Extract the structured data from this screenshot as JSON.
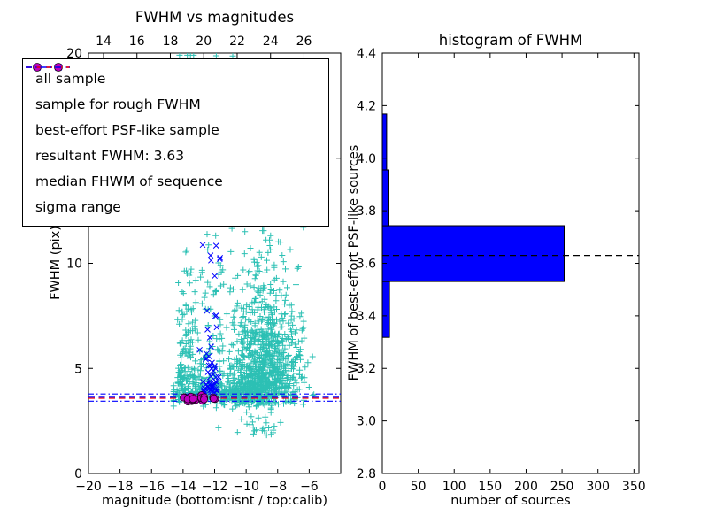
{
  "figure": {
    "background": "#ffffff"
  },
  "chart_data": [
    {
      "type": "scatter",
      "title": "FWHM vs magnitudes",
      "xlabel": "magnitude (bottom:isnt / top:calib)",
      "ylabel": "FWHM (pix)",
      "xlim": [
        -20,
        -4
      ],
      "ylim": [
        0,
        20
      ],
      "top_axis_xlim": [
        13.1,
        28.2
      ],
      "xticks": [
        -20,
        -18,
        -16,
        -14,
        -12,
        -10,
        -8,
        -6
      ],
      "top_xticks": [
        14,
        16,
        18,
        20,
        22,
        24,
        26
      ],
      "yticks": [
        0,
        5,
        10,
        15,
        20
      ],
      "grid": false,
      "legend_position": "upper left",
      "lines": {
        "resultant_fwhm": {
          "value": 3.63,
          "color": "#0000ff",
          "style": "dashed"
        },
        "median_fwhm": {
          "value": 3.58,
          "color": "#ff0000",
          "style": "dashed"
        },
        "sigma_range": {
          "low": 3.44,
          "high": 3.78,
          "color": "#0000ff",
          "style": "dashdot"
        }
      },
      "legend": {
        "items": [
          {
            "label": "all sample",
            "marker": "plus",
            "color": "#2cc0b4"
          },
          {
            "label": "sample for rough FWHM",
            "marker": "x",
            "color": "#0000ff"
          },
          {
            "label": "best-effort PSF-like sample",
            "marker": "circle",
            "color": "#bf00bf"
          },
          {
            "label": "resultant FWHM: 3.63",
            "marker": "dashed-line",
            "color": "#0000ff"
          },
          {
            "label": "median FHWM of sequence",
            "marker": "dashed-line",
            "color": "#ff0000"
          },
          {
            "label": "sigma range",
            "marker": "dashdot-line",
            "color": "#0000ff"
          }
        ]
      },
      "series": [
        {
          "name": "all sample",
          "marker": "plus",
          "color": "#2cc0b4",
          "clusters": [
            {
              "n": 150,
              "mag": {
                "dist": "uniform",
                "min": -14.35,
                "max": -13.25
              },
              "fwhm": {
                "dist": "lognorm",
                "offset": 3.3,
                "mu": 0.75,
                "sigma": 1.0,
                "min": 3.35,
                "max": 19.9
              }
            },
            {
              "n": 120,
              "mag": {
                "dist": "uniform",
                "min": -13.25,
                "max": -11.45
              },
              "fwhm": {
                "dist": "lognorm",
                "offset": 3.4,
                "mu": 0.8,
                "sigma": 0.9,
                "min": 3.45,
                "max": 19.6
              }
            },
            {
              "n": 880,
              "mag": {
                "dist": "normal",
                "mu": -8.9,
                "sigma": 1.15,
                "min": -11.7,
                "max": -5.6
              },
              "fwhm": {
                "dist": "lognorm",
                "offset": 2.7,
                "mu": 0.95,
                "sigma": 0.62,
                "min": 2.3,
                "max": 18.5
              }
            },
            {
              "n": 290,
              "mag": {
                "dist": "normal",
                "mu": -11.0,
                "sigma": 2.1,
                "min": -14.6,
                "max": -5.7
              },
              "fwhm": {
                "dist": "normal",
                "mu": 3.75,
                "sigma": 0.28,
                "min": 3.05,
                "max": 4.6
              }
            },
            {
              "n": 26,
              "mag": {
                "dist": "normal",
                "mu": -9.3,
                "sigma": 1.1,
                "min": -11.9,
                "max": -6.6
              },
              "fwhm": {
                "dist": "uniform",
                "min": 1.8,
                "max": 2.95
              }
            },
            {
              "n": 45,
              "mag": {
                "dist": "uniform",
                "min": -13.6,
                "max": -6.4
              },
              "fwhm": {
                "dist": "uniform",
                "min": 12.8,
                "max": 19.9
              }
            }
          ]
        },
        {
          "name": "sample for rough FWHM",
          "marker": "x",
          "color": "#0000ff",
          "clusters": [
            {
              "n": 46,
              "mag": {
                "dist": "normal",
                "mu": -12.2,
                "sigma": 0.33,
                "min": -12.95,
                "max": -11.45
              },
              "fwhm": {
                "dist": "lognorm",
                "offset": 3.55,
                "mu": 0.45,
                "sigma": 0.85,
                "min": 3.6,
                "max": 13.2
              }
            },
            {
              "n": 14,
              "mag": {
                "dist": "uniform",
                "min": -12.7,
                "max": -11.8
              },
              "fwhm": {
                "dist": "normal",
                "mu": 4.1,
                "sigma": 0.18
              }
            }
          ]
        },
        {
          "name": "best-effort PSF-like sample",
          "marker": "circle",
          "color": "#bf00bf",
          "edge": "#1a001a",
          "clusters": [
            {
              "n": 24,
              "mag": {
                "dist": "uniform",
                "min": -14.15,
                "max": -11.9
              },
              "fwhm": {
                "dist": "normal",
                "mu": 3.58,
                "sigma": 0.055
              }
            }
          ]
        }
      ]
    },
    {
      "type": "bar-horizontal",
      "title": "histogram of FWHM",
      "xlabel": "number of sources",
      "ylabel": "FWHM of best-effort PSF-like sources",
      "xlim": [
        0,
        357
      ],
      "ylim": [
        2.8,
        4.4
      ],
      "xticks": [
        0,
        50,
        100,
        150,
        200,
        250,
        300,
        350
      ],
      "yticks": [
        2.8,
        3.0,
        3.2,
        3.4,
        3.6,
        3.8,
        4.0,
        4.2,
        4.4
      ],
      "grid": false,
      "bar_color": "#0000ff",
      "bar_edge_color": "#000000",
      "bins": {
        "edges": [
          3.318,
          3.5305,
          3.743,
          3.9555,
          4.168
        ],
        "counts": [
          10,
          253,
          8,
          6
        ]
      },
      "marker_line": {
        "value": 3.63,
        "color": "#000000",
        "style": "dashed"
      }
    }
  ]
}
